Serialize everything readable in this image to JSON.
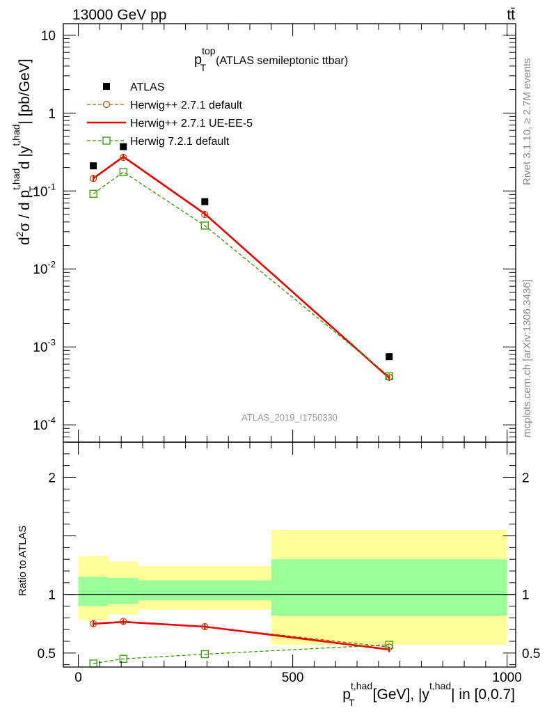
{
  "header": {
    "energy_label": "13000 GeV pp",
    "process_label": "tt̄"
  },
  "side_labels": {
    "rivet": "Rivet 3.1.10, ≥ 2.7M events",
    "mcplots": "mcplots.cern.ch [arXiv:1306.3436]"
  },
  "title": {
    "base": "p",
    "sup": "top",
    "sub": "T",
    "rest": "(ATLAS semileptonic ttbar)"
  },
  "watermark": "ATLAS_2019_I1750330",
  "main_ylabel": {
    "d2": "d",
    "two": "2",
    "sigma": "σ / d p",
    "sup1": "t,had",
    "sub1": "T",
    "mid": "d |y",
    "sup2": "t,had",
    "end": "| [pb/GeV]"
  },
  "main_yticks": [
    {
      "value": 10,
      "base": "10",
      "exp": ""
    },
    {
      "value": 1,
      "base": "1",
      "exp": ""
    },
    {
      "value": 0.1,
      "base": "10",
      "exp": "-1"
    },
    {
      "value": 0.01,
      "base": "10",
      "exp": "-2"
    },
    {
      "value": 0.001,
      "base": "10",
      "exp": "-3"
    },
    {
      "value": 0.0001,
      "base": "10",
      "exp": "-4"
    }
  ],
  "ratio_ylabel": "Ratio to ATLAS",
  "ratio_yticks": [
    {
      "value": 0.5,
      "label": "0.5"
    },
    {
      "value": 1,
      "label": "1"
    },
    {
      "value": 2,
      "label": "2"
    }
  ],
  "xlabel": {
    "p": "p",
    "sup1": "t,had",
    "sub1": "T",
    "mid": "[GeV], |y",
    "sup2": "t,had",
    "end": "| in [0,0.7]"
  },
  "xticks": [
    {
      "value": 0,
      "label": "0"
    },
    {
      "value": 500,
      "label": "500"
    },
    {
      "value": 1000,
      "label": "1000"
    }
  ],
  "legend": [
    {
      "label": "ATLAS",
      "color": "#000000",
      "marker": "square-filled",
      "line": "none"
    },
    {
      "label": "Herwig++ 2.7.1 default",
      "color": "#b05a00",
      "marker": "circle",
      "line": "dashed"
    },
    {
      "label": "Herwig++ 2.7.1 UE-EE-5",
      "color": "#ee0000",
      "marker": "none",
      "line": "solid"
    },
    {
      "label": "Herwig 7.2.1 default",
      "color": "#339900",
      "marker": "square-open",
      "line": "dashed"
    }
  ],
  "chart_data": {
    "type": "scatter",
    "title": "p_T^top (ATLAS semileptonic ttbar)",
    "xlabel": "p_T^t,had [GeV], |y^t,had| in [0,0.7]",
    "ylabel": "d2σ / d p_T^t,had d |y^t,had| [pb/GeV]",
    "xlim": [
      -35,
      1020
    ],
    "ylim_main": [
      6e-05,
      14
    ],
    "yscale_main": "log",
    "ylim_ratio": [
      0.38,
      2.3
    ],
    "bins": [
      [
        0,
        70
      ],
      [
        70,
        140
      ],
      [
        140,
        450
      ],
      [
        450,
        1000
      ]
    ],
    "x": [
      35,
      105,
      295,
      725
    ],
    "series": [
      {
        "name": "ATLAS",
        "values": [
          0.21,
          0.37,
          0.073,
          0.00075
        ]
      },
      {
        "name": "Herwig++ 2.7.1 default",
        "values": [
          0.145,
          0.27,
          0.05,
          0.00041
        ]
      },
      {
        "name": "Herwig++ 2.7.1 UE-EE-5",
        "values": [
          0.145,
          0.275,
          0.051,
          0.0004
        ]
      },
      {
        "name": "Herwig 7.2.1 default",
        "values": [
          0.092,
          0.175,
          0.036,
          0.00042
        ]
      }
    ],
    "ratio_series": [
      {
        "name": "Herwig++ 2.7.1 default",
        "values": [
          0.75,
          0.77,
          0.725,
          0.55
        ]
      },
      {
        "name": "Herwig++ 2.7.1 UE-EE-5",
        "values": [
          0.75,
          0.765,
          0.725,
          0.53
        ]
      },
      {
        "name": "Herwig 7.2.1 default",
        "values": [
          0.41,
          0.45,
          0.49,
          0.57
        ]
      }
    ],
    "uncertainty_bands": {
      "inner": [
        [
          0.9,
          1.15
        ],
        [
          0.92,
          1.14
        ],
        [
          0.95,
          1.12
        ],
        [
          0.82,
          1.3
        ]
      ],
      "outer": [
        [
          0.78,
          1.33
        ],
        [
          0.83,
          1.28
        ],
        [
          0.87,
          1.24
        ],
        [
          0.57,
          1.55
        ]
      ]
    },
    "colors": {
      "inner_band": "#99ff99",
      "outer_band": "#ffff99"
    }
  }
}
